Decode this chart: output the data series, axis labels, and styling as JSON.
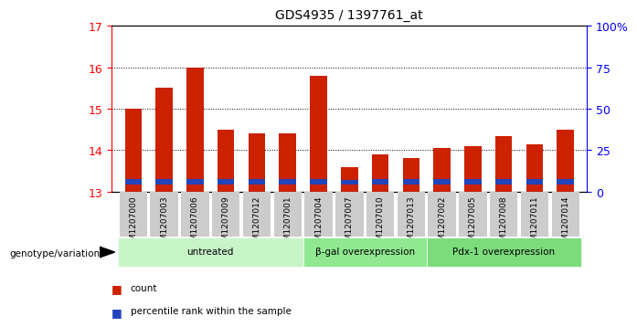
{
  "title": "GDS4935 / 1397761_at",
  "samples": [
    "GSM1207000",
    "GSM1207003",
    "GSM1207006",
    "GSM1207009",
    "GSM1207012",
    "GSM1207001",
    "GSM1207004",
    "GSM1207007",
    "GSM1207010",
    "GSM1207013",
    "GSM1207002",
    "GSM1207005",
    "GSM1207008",
    "GSM1207011",
    "GSM1207014"
  ],
  "red_values": [
    15.0,
    15.5,
    16.0,
    14.5,
    14.4,
    14.4,
    15.8,
    13.6,
    13.9,
    13.8,
    14.05,
    14.1,
    14.35,
    14.15,
    14.5
  ],
  "blue_heights": [
    0.13,
    0.13,
    0.13,
    0.12,
    0.13,
    0.12,
    0.13,
    0.11,
    0.12,
    0.12,
    0.12,
    0.12,
    0.12,
    0.12,
    0.12
  ],
  "blue_bottoms": [
    13.18,
    13.18,
    13.18,
    13.18,
    13.18,
    13.18,
    13.18,
    13.18,
    13.18,
    13.18,
    13.18,
    13.18,
    13.18,
    13.18,
    13.18
  ],
  "groups": [
    {
      "label": "untreated",
      "indices": [
        0,
        1,
        2,
        3,
        4,
        5
      ],
      "color": "#c8f5c8"
    },
    {
      "label": "β-gal overexpression",
      "indices": [
        6,
        7,
        8,
        9
      ],
      "color": "#90e890"
    },
    {
      "label": "Pdx-1 overexpression",
      "indices": [
        10,
        11,
        12,
        13,
        14
      ],
      "color": "#7cdc7c"
    }
  ],
  "ylim_left": [
    13,
    17
  ],
  "ylim_right": [
    0,
    100
  ],
  "yticks_left": [
    13,
    14,
    15,
    16,
    17
  ],
  "yticks_right": [
    0,
    25,
    50,
    75,
    100
  ],
  "ytick_labels_right": [
    "0",
    "25",
    "50",
    "75",
    "100%"
  ],
  "bar_color": "#cc2200",
  "blue_color": "#2244bb",
  "bar_width": 0.55,
  "plot_bg": "#ffffff",
  "xtick_bg": "#cccccc",
  "genotype_label": "genotype/variation"
}
